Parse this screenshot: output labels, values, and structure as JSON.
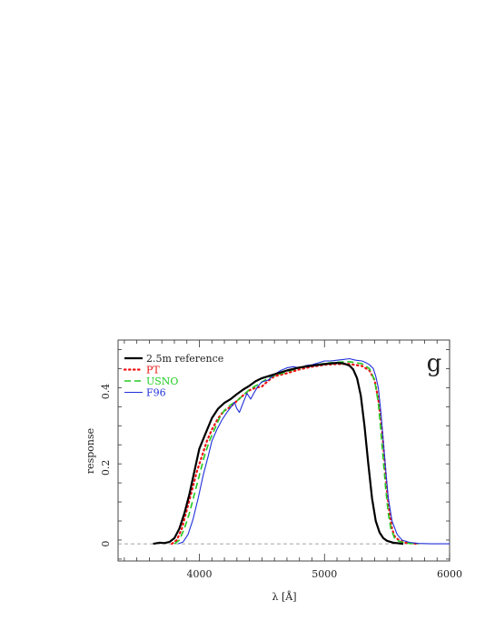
{
  "chart_data": {
    "type": "line",
    "title": "",
    "xlabel": "λ [Å]",
    "ylabel": "response",
    "band_label": "g",
    "xlim": [
      3350,
      6000
    ],
    "ylim": [
      -0.045,
      0.535
    ],
    "xticks_major": [
      4000,
      5000,
      6000
    ],
    "yticks_major": [
      0,
      0.2,
      0.4
    ],
    "xtick_labels": [
      "4000",
      "5000",
      "6000"
    ],
    "ytick_labels": [
      "0",
      "0.2",
      "0.4"
    ],
    "zero_line": true,
    "grid": false,
    "legend_placement": "top-left",
    "series": [
      {
        "name": "2.5m reference",
        "color": "#000000",
        "style": "solid-thick",
        "x": [
          3630,
          3680,
          3720,
          3760,
          3800,
          3840,
          3880,
          3920,
          3960,
          4000,
          4050,
          4100,
          4150,
          4200,
          4250,
          4300,
          4350,
          4400,
          4450,
          4500,
          4600,
          4700,
          4800,
          4900,
          5000,
          5100,
          5150,
          5200,
          5230,
          5260,
          5290,
          5320,
          5350,
          5380,
          5410,
          5440,
          5470,
          5500,
          5550,
          5600,
          5630
        ],
        "y": [
          0.0,
          0.003,
          0.002,
          0.005,
          0.015,
          0.04,
          0.08,
          0.13,
          0.19,
          0.25,
          0.29,
          0.33,
          0.355,
          0.37,
          0.38,
          0.393,
          0.405,
          0.415,
          0.427,
          0.435,
          0.445,
          0.455,
          0.463,
          0.468,
          0.472,
          0.475,
          0.474,
          0.468,
          0.458,
          0.435,
          0.39,
          0.31,
          0.21,
          0.12,
          0.06,
          0.03,
          0.015,
          0.008,
          0.003,
          0.001,
          0.0
        ]
      },
      {
        "name": "PT",
        "color": "#ee1111",
        "style": "dotted",
        "x": [
          3780,
          3820,
          3860,
          3900,
          3940,
          3980,
          4020,
          4060,
          4100,
          4150,
          4200,
          4250,
          4300,
          4350,
          4400,
          4450,
          4500,
          4550,
          4600,
          4700,
          4800,
          4900,
          5000,
          5100,
          5200,
          5300,
          5360,
          5400,
          5430,
          5460,
          5480,
          5500,
          5520,
          5540,
          5560,
          5600,
          5650,
          5700,
          5750
        ],
        "y": [
          0.0,
          0.01,
          0.04,
          0.09,
          0.14,
          0.19,
          0.23,
          0.27,
          0.3,
          0.33,
          0.35,
          0.36,
          0.375,
          0.39,
          0.403,
          0.41,
          0.413,
          0.428,
          0.44,
          0.448,
          0.458,
          0.465,
          0.47,
          0.472,
          0.472,
          0.467,
          0.455,
          0.43,
          0.38,
          0.3,
          0.22,
          0.14,
          0.08,
          0.04,
          0.02,
          0.008,
          0.003,
          0.001,
          0.0
        ]
      },
      {
        "name": "USNO",
        "color": "#22cc22",
        "style": "dashed",
        "x": [
          3800,
          3840,
          3880,
          3920,
          3960,
          4000,
          4040,
          4080,
          4120,
          4160,
          4200,
          4250,
          4300,
          4350,
          4400,
          4450,
          4500,
          4550,
          4600,
          4700,
          4800,
          4900,
          5000,
          5100,
          5200,
          5300,
          5360,
          5400,
          5430,
          5450,
          5470,
          5490,
          5510,
          5530,
          5560,
          5600,
          5650,
          5700,
          5750
        ],
        "y": [
          0.0,
          0.01,
          0.04,
          0.08,
          0.13,
          0.18,
          0.23,
          0.27,
          0.3,
          0.33,
          0.35,
          0.365,
          0.375,
          0.39,
          0.405,
          0.415,
          0.425,
          0.435,
          0.442,
          0.452,
          0.462,
          0.468,
          0.474,
          0.477,
          0.478,
          0.473,
          0.46,
          0.43,
          0.37,
          0.3,
          0.22,
          0.14,
          0.08,
          0.04,
          0.015,
          0.006,
          0.002,
          0.001,
          0.0
        ]
      },
      {
        "name": "F96",
        "color": "#1f2fd8",
        "style": "solid-thin",
        "x": [
          3830,
          3870,
          3910,
          3950,
          3990,
          4030,
          4070,
          4100,
          4140,
          4180,
          4220,
          4260,
          4280,
          4300,
          4320,
          4350,
          4380,
          4410,
          4440,
          4470,
          4500,
          4550,
          4600,
          4650,
          4700,
          4750,
          4800,
          4850,
          4900,
          4950,
          5000,
          5050,
          5100,
          5150,
          5200,
          5250,
          5300,
          5330,
          5360,
          5390,
          5410,
          5430,
          5450,
          5470,
          5490,
          5510,
          5540,
          5580,
          5620,
          5680,
          5750,
          5850,
          6000
        ],
        "y": [
          0.0,
          0.005,
          0.025,
          0.065,
          0.12,
          0.18,
          0.23,
          0.27,
          0.3,
          0.325,
          0.345,
          0.362,
          0.372,
          0.355,
          0.345,
          0.37,
          0.395,
          0.38,
          0.398,
          0.415,
          0.425,
          0.43,
          0.445,
          0.455,
          0.462,
          0.465,
          0.462,
          0.468,
          0.47,
          0.475,
          0.48,
          0.48,
          0.482,
          0.484,
          0.486,
          0.482,
          0.48,
          0.476,
          0.47,
          0.46,
          0.44,
          0.41,
          0.35,
          0.27,
          0.19,
          0.12,
          0.06,
          0.025,
          0.01,
          0.004,
          0.001,
          0.0,
          0.0
        ]
      }
    ]
  }
}
